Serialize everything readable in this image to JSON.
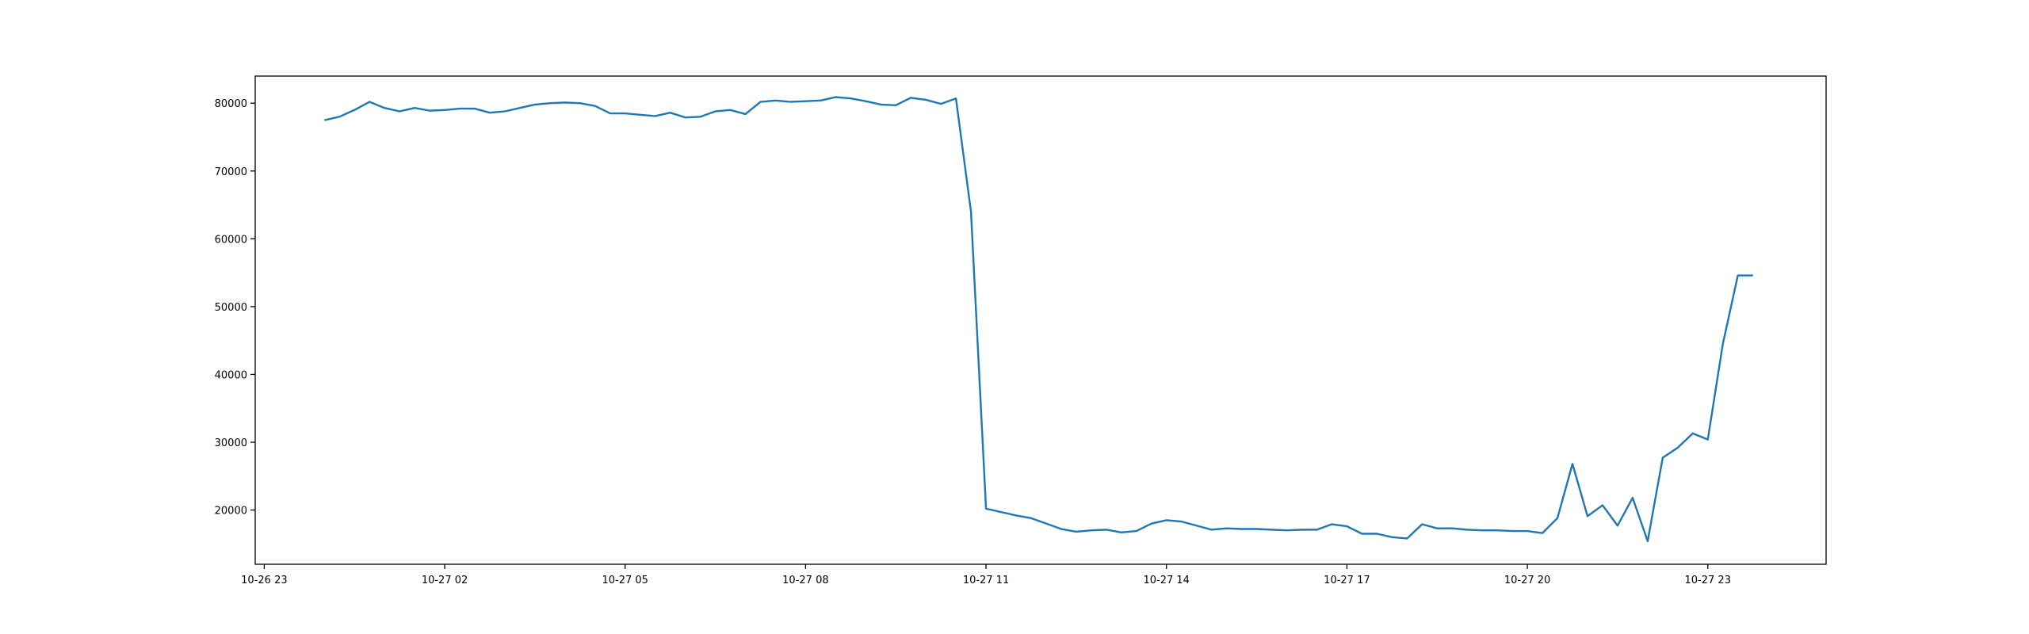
{
  "chart_data": {
    "type": "line",
    "x": [
      "10-27 00:00",
      "10-27 00:15",
      "10-27 00:30",
      "10-27 00:45",
      "10-27 01:00",
      "10-27 01:15",
      "10-27 01:30",
      "10-27 01:45",
      "10-27 02:00",
      "10-27 02:15",
      "10-27 02:30",
      "10-27 02:45",
      "10-27 03:00",
      "10-27 03:15",
      "10-27 03:30",
      "10-27 03:45",
      "10-27 04:00",
      "10-27 04:15",
      "10-27 04:30",
      "10-27 04:45",
      "10-27 05:00",
      "10-27 05:15",
      "10-27 05:30",
      "10-27 05:45",
      "10-27 06:00",
      "10-27 06:15",
      "10-27 06:30",
      "10-27 06:45",
      "10-27 07:00",
      "10-27 07:15",
      "10-27 07:30",
      "10-27 07:45",
      "10-27 08:00",
      "10-27 08:15",
      "10-27 08:30",
      "10-27 08:45",
      "10-27 09:00",
      "10-27 09:15",
      "10-27 09:30",
      "10-27 09:45",
      "10-27 10:00",
      "10-27 10:15",
      "10-27 10:30",
      "10-27 10:45",
      "10-27 11:00",
      "10-27 11:15",
      "10-27 11:30",
      "10-27 11:45",
      "10-27 12:00",
      "10-27 12:15",
      "10-27 12:30",
      "10-27 12:45",
      "10-27 13:00",
      "10-27 13:15",
      "10-27 13:30",
      "10-27 13:45",
      "10-27 14:00",
      "10-27 14:15",
      "10-27 14:30",
      "10-27 14:45",
      "10-27 15:00",
      "10-27 15:15",
      "10-27 15:30",
      "10-27 15:45",
      "10-27 16:00",
      "10-27 16:15",
      "10-27 16:30",
      "10-27 16:45",
      "10-27 17:00",
      "10-27 17:15",
      "10-27 17:30",
      "10-27 17:45",
      "10-27 18:00",
      "10-27 18:15",
      "10-27 18:30",
      "10-27 18:45",
      "10-27 19:00",
      "10-27 19:15",
      "10-27 19:30",
      "10-27 19:45",
      "10-27 20:00",
      "10-27 20:15",
      "10-27 20:30",
      "10-27 20:45",
      "10-27 21:00",
      "10-27 21:15",
      "10-27 21:30",
      "10-27 21:45",
      "10-27 22:00",
      "10-27 22:15",
      "10-27 22:30",
      "10-27 22:45",
      "10-27 23:00",
      "10-27 23:15",
      "10-27 23:30",
      "10-27 23:45"
    ],
    "series": [
      {
        "color": "#1f77b4",
        "values": [
          77500,
          78000,
          79000,
          80200,
          79300,
          78800,
          79300,
          78900,
          79000,
          79200,
          79200,
          78600,
          78800,
          79300,
          79800,
          80000,
          80100,
          80000,
          79600,
          78500,
          78500,
          78300,
          78100,
          78600,
          77900,
          78000,
          78800,
          79000,
          78400,
          80200,
          80400,
          80200,
          80300,
          80400,
          80900,
          80700,
          80300,
          79800,
          79700,
          80800,
          80500,
          79900,
          80700,
          64000,
          20200,
          19700,
          19200,
          18800,
          18000,
          17200,
          16800,
          17000,
          17100,
          16700,
          16900,
          18000,
          18500,
          18300,
          17700,
          17100,
          17300,
          17200,
          17200,
          17100,
          17000,
          17100,
          17100,
          17900,
          17600,
          16500,
          16500,
          16000,
          15800,
          17900,
          17300,
          17300,
          17100,
          17000,
          17000,
          16900,
          16900,
          16600,
          18800,
          26800,
          19100,
          20700,
          17700,
          21800,
          15400,
          27700,
          29200,
          31300,
          30400,
          44500,
          54600,
          54600
        ]
      }
    ],
    "xlim": [
      "10-26 22:51",
      "10-28 00:58"
    ],
    "xticks": [
      {
        "value": "10-26 23:00",
        "label": "10-26 23"
      },
      {
        "value": "10-27 02:00",
        "label": "10-27 02"
      },
      {
        "value": "10-27 05:00",
        "label": "10-27 05"
      },
      {
        "value": "10-27 08:00",
        "label": "10-27 08"
      },
      {
        "value": "10-27 11:00",
        "label": "10-27 11"
      },
      {
        "value": "10-27 14:00",
        "label": "10-27 14"
      },
      {
        "value": "10-27 17:00",
        "label": "10-27 17"
      },
      {
        "value": "10-27 20:00",
        "label": "10-27 20"
      },
      {
        "value": "10-27 23:00",
        "label": "10-27 23"
      }
    ],
    "ylim": [
      12000,
      84000
    ],
    "yticks": [
      20000,
      30000,
      40000,
      50000,
      60000,
      70000,
      80000
    ],
    "grid": false
  }
}
